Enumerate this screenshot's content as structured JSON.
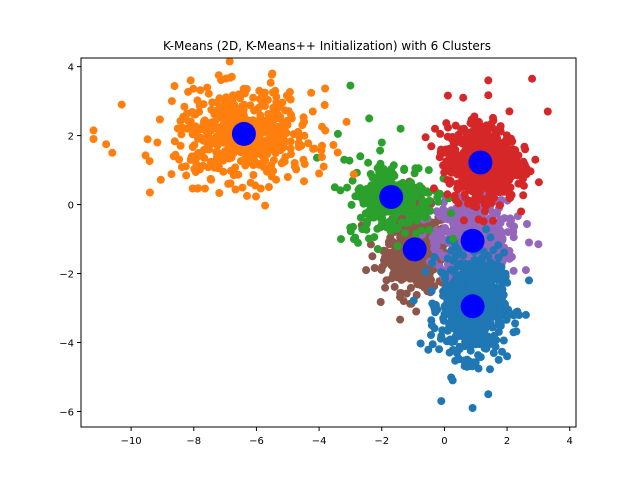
{
  "chart_data": {
    "type": "scatter",
    "title": "K-Means (2D, K-Means++ Initialization) with 6 Clusters",
    "xlabel": "",
    "ylabel": "",
    "xlim": [
      -11.6,
      4.2
    ],
    "ylim": [
      -6.45,
      4.25
    ],
    "xticks": [
      -10,
      -8,
      -6,
      -4,
      -2,
      0,
      2,
      4
    ],
    "yticks": [
      -6,
      -4,
      -2,
      0,
      2,
      4
    ],
    "xtick_labels": [
      "−10",
      "−8",
      "−6",
      "−4",
      "−2",
      "0",
      "2",
      "4"
    ],
    "ytick_labels": [
      "−6",
      "−4",
      "−2",
      "0",
      "2",
      "4"
    ],
    "grid": false,
    "legend": "none",
    "centroid_color": "#0000ff",
    "clusters": [
      {
        "color": "#ff7f0e",
        "center": [
          -6.4,
          2.0
        ],
        "sample_points": [
          [
            -11.2,
            2.15
          ],
          [
            -11.2,
            1.9
          ],
          [
            -10.8,
            1.75
          ],
          [
            -10.6,
            1.5
          ],
          [
            -10.3,
            2.9
          ],
          [
            -9.4,
            0.35
          ],
          [
            -8.7,
            3.0
          ],
          [
            -8.1,
            3.6
          ],
          [
            -7.8,
            2.9
          ],
          [
            -7.2,
            3.75
          ],
          [
            -6.9,
            0.6
          ],
          [
            -6.3,
            0.25
          ],
          [
            -5.4,
            3.3
          ],
          [
            -5.0,
            0.8
          ],
          [
            -4.5,
            1.3
          ],
          [
            -4.2,
            2.7
          ],
          [
            -4.0,
            0.9
          ]
        ]
      },
      {
        "color": "#2ca02c",
        "center": [
          -1.7,
          0.2
        ],
        "sample_points": [
          [
            -3.4,
            2.05
          ],
          [
            -3.0,
            3.45
          ],
          [
            -2.4,
            2.5
          ],
          [
            -2.0,
            1.8
          ],
          [
            -1.4,
            2.2
          ],
          [
            -3.3,
            -1.0
          ],
          [
            -3.2,
            1.3
          ],
          [
            -0.5,
            1.0
          ],
          [
            -0.3,
            0.4
          ],
          [
            -3.5,
            0.5
          ]
        ]
      },
      {
        "color": "#d62728",
        "center": [
          1.2,
          1.2
        ],
        "sample_points": [
          [
            0.6,
            3.1
          ],
          [
            1.4,
            3.6
          ],
          [
            2.8,
            3.65
          ],
          [
            3.3,
            2.7
          ],
          [
            2.9,
            1.3
          ],
          [
            -0.6,
            1.95
          ],
          [
            -0.3,
            2.2
          ],
          [
            0.0,
            1.5
          ],
          [
            2.1,
            0.2
          ]
        ]
      },
      {
        "color": "#9467bd",
        "center": [
          0.9,
          -1.0
        ],
        "sample_points": [
          [
            2.7,
            -1.1
          ],
          [
            3.0,
            -1.15
          ],
          [
            2.6,
            -1.9
          ],
          [
            2.1,
            -0.4
          ],
          [
            0.0,
            -0.3
          ],
          [
            0.4,
            -2.0
          ]
        ]
      },
      {
        "color": "#8c564b",
        "center": [
          -0.9,
          -1.3
        ],
        "sample_points": [
          [
            -2.5,
            -1.9
          ],
          [
            -2.3,
            -1.5
          ],
          [
            -1.3,
            -2.8
          ],
          [
            -0.9,
            -3.1
          ],
          [
            -0.5,
            -2.0
          ],
          [
            -0.1,
            -1.6
          ]
        ]
      },
      {
        "color": "#1f77b4",
        "center": [
          0.9,
          -2.9
        ],
        "sample_points": [
          [
            -0.1,
            -5.7
          ],
          [
            0.9,
            -5.9
          ],
          [
            1.4,
            -5.5
          ],
          [
            0.4,
            -4.3
          ],
          [
            2.0,
            -4.4
          ],
          [
            2.6,
            -3.2
          ],
          [
            2.7,
            -2.2
          ],
          [
            -0.4,
            -3.5
          ]
        ]
      }
    ],
    "centroids": [
      [
        -6.4,
        2.05
      ],
      [
        -1.7,
        0.22
      ],
      [
        1.15,
        1.22
      ],
      [
        0.9,
        -1.05
      ],
      [
        -0.95,
        -1.3
      ],
      [
        0.9,
        -2.95
      ]
    ]
  }
}
